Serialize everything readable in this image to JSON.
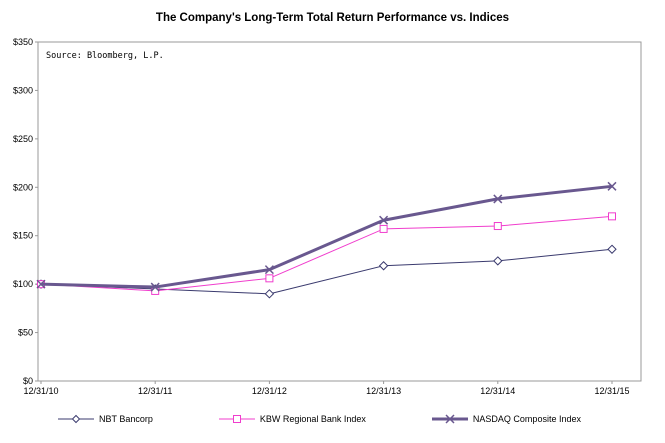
{
  "chart_data": {
    "type": "line",
    "title": "The Company's Long-Term Total Return Performance vs. Indices",
    "source_note": "Source: Bloomberg, L.P.",
    "categories": [
      "12/31/10",
      "12/31/11",
      "12/31/12",
      "12/31/13",
      "12/31/14",
      "12/31/15"
    ],
    "ylim": [
      0,
      350
    ],
    "yticks": [
      0,
      50,
      100,
      150,
      200,
      250,
      300,
      350
    ],
    "ytick_prefix": "$",
    "grid": "off",
    "legend_position": "bottom",
    "series": [
      {
        "name": "NBT Bancorp",
        "color": "#3a3a6e",
        "marker": "diamond",
        "line_width": 1,
        "values": [
          100,
          95,
          90,
          119,
          124,
          136
        ]
      },
      {
        "name": "KBW Regional Bank Index",
        "color": "#f03dcd",
        "marker": "square",
        "line_width": 1,
        "values": [
          100,
          93,
          106,
          157,
          160,
          170
        ]
      },
      {
        "name": "NASDAQ Composite Index",
        "color": "#69588f",
        "marker": "x",
        "line_width": 3,
        "values": [
          100,
          97,
          115,
          166,
          188,
          201
        ]
      }
    ]
  }
}
